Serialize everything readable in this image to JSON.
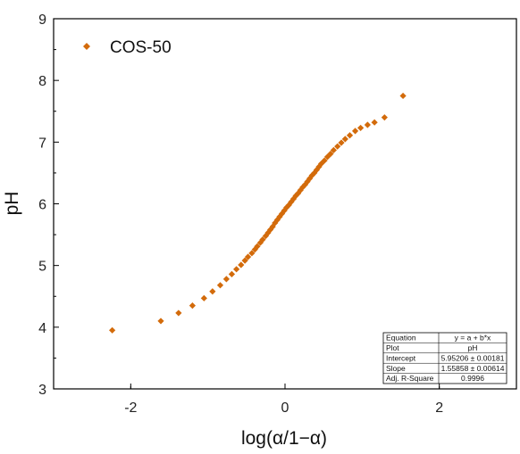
{
  "chart_data": {
    "type": "scatter",
    "xlabel": "log(α/1−α)",
    "ylabel": "pH",
    "xlim": [
      -3,
      3
    ],
    "ylim": [
      3,
      9
    ],
    "x_ticks": [
      -2,
      0,
      2
    ],
    "y_ticks": [
      3,
      4,
      5,
      6,
      7,
      8,
      9
    ],
    "legend_position": "top-left",
    "grid": false,
    "marker": "diamond",
    "series": [
      {
        "name": "COS-50",
        "color": "#d36b0b",
        "x": [
          -2.24,
          -1.61,
          -1.38,
          -1.2,
          -1.05,
          -0.94,
          -0.84,
          -0.76,
          -0.69,
          -0.63,
          -0.57,
          -0.52,
          -0.48,
          -0.43,
          -0.39,
          -0.36,
          -0.32,
          -0.29,
          -0.25,
          -0.22,
          -0.19,
          -0.16,
          -0.13,
          -0.1,
          -0.07,
          -0.04,
          -0.01,
          0.02,
          0.05,
          0.08,
          0.11,
          0.14,
          0.17,
          0.2,
          0.23,
          0.26,
          0.29,
          0.32,
          0.35,
          0.38,
          0.41,
          0.44,
          0.47,
          0.51,
          0.55,
          0.59,
          0.63,
          0.68,
          0.73,
          0.78,
          0.84,
          0.91,
          0.98,
          1.07,
          1.16,
          1.29,
          1.53
        ],
        "y": [
          3.95,
          4.1,
          4.23,
          4.35,
          4.47,
          4.58,
          4.68,
          4.78,
          4.86,
          4.94,
          5.01,
          5.08,
          5.14,
          5.2,
          5.26,
          5.31,
          5.37,
          5.42,
          5.48,
          5.53,
          5.58,
          5.63,
          5.69,
          5.74,
          5.79,
          5.84,
          5.89,
          5.94,
          5.98,
          6.03,
          6.08,
          6.13,
          6.17,
          6.22,
          6.27,
          6.31,
          6.36,
          6.41,
          6.46,
          6.5,
          6.55,
          6.6,
          6.65,
          6.7,
          6.76,
          6.81,
          6.87,
          6.93,
          6.99,
          7.05,
          7.11,
          7.18,
          7.23,
          7.28,
          7.32,
          7.4,
          7.75
        ]
      }
    ],
    "fit_table": {
      "rows": [
        {
          "label": "Equation",
          "value": "y = a + b*x"
        },
        {
          "label": "Plot",
          "value": "pH"
        },
        {
          "label": "Intercept",
          "value": "5.95206 ± 0.00181"
        },
        {
          "label": "Slope",
          "value": "1.55858 ± 0.00614"
        },
        {
          "label": "Adj. R-Square",
          "value": "0.9996"
        }
      ]
    }
  }
}
